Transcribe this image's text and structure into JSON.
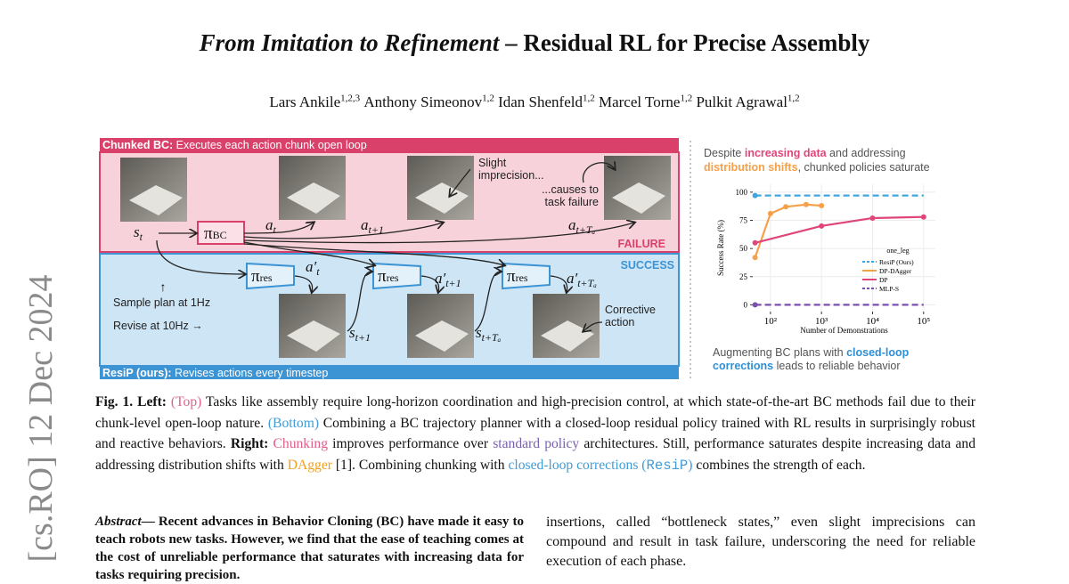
{
  "header": {
    "arxiv": "[cs.RO]  12 Dec 2024",
    "title_italic": "From Imitation to Refinement",
    "title_rest": " – Residual RL for Precise Assembly",
    "authors": [
      {
        "name": "Lars Ankile",
        "aff": "1,2,3"
      },
      {
        "name": "Anthony Simeonov",
        "aff": "1,2"
      },
      {
        "name": "Idan Shenfeld",
        "aff": "1,2"
      },
      {
        "name": "Marcel Torne",
        "aff": "1,2"
      },
      {
        "name": "Pulkit Agrawal",
        "aff": "1,2"
      }
    ]
  },
  "figure": {
    "diagram": {
      "top_header_bold": "Chunked BC:",
      "top_header": " Executes each action chunk open loop",
      "bottom_header_bold": "ResiP (ours):",
      "bottom_header": " Revises actions every timestep",
      "failure": "FAILURE",
      "success": "SUCCESS",
      "note_imprecision": [
        "Slight",
        "imprecision..."
      ],
      "note_failure": [
        "...causes to",
        "task failure"
      ],
      "note_corrective": [
        "Corrective",
        "action"
      ],
      "sample": "Sample plan at 1Hz",
      "revise": "Revise at 10Hz  →",
      "up_arrow": "↑",
      "labels": [
        {
          "base": "s",
          "sub": "t"
        },
        {
          "base": "π",
          "sub": "BC"
        },
        {
          "base": "a",
          "sub": "t"
        },
        {
          "base": "a",
          "sub": "t+1"
        },
        {
          "base": "a",
          "sub": "t+Tₐ"
        },
        {
          "base": "π",
          "sub": "res"
        },
        {
          "base": "π",
          "sub": "res"
        },
        {
          "base": "π",
          "sub": "res"
        },
        {
          "base": "a′",
          "sub": "t"
        },
        {
          "base": "a′",
          "sub": "t+1"
        },
        {
          "base": "a′",
          "sub": "t+Tₐ"
        },
        {
          "base": "s",
          "sub": "t+1"
        },
        {
          "base": "s",
          "sub": "t+Tₐ"
        }
      ]
    },
    "chart": {
      "type": "line",
      "heading": [
        [
          "Despite ",
          "increasing data",
          " and addressing"
        ],
        [
          "distribution shifts",
          ", chunked policies saturate"
        ]
      ],
      "footer": [
        [
          "Augmenting BC plans with ",
          "closed-loop"
        ],
        [
          "corrections",
          " leads to reliable behavior"
        ]
      ],
      "x_label": "Number of Demonstrations",
      "y_label": "Success Rate (%)",
      "log_x": true,
      "grid": true,
      "legend_title": "one_leg",
      "legend": "lower right",
      "xlim": [
        45,
        170000
      ],
      "ylim": [
        -6,
        107
      ],
      "xticks": [
        {
          "value": 100,
          "label": "10²"
        },
        {
          "value": 1000,
          "label": "10³"
        },
        {
          "value": 10000,
          "label": "10⁴"
        },
        {
          "value": 100000,
          "label": "10⁵"
        }
      ],
      "yticks": [
        0,
        25,
        50,
        75,
        100
      ],
      "series": [
        {
          "name": "ResiP (Ours)",
          "color": "#3fa7e0",
          "dashed": true,
          "x": [
            50,
            100000
          ],
          "values": [
            97,
            97
          ]
        },
        {
          "name": "DP-DAgger",
          "color": "#f5a04a",
          "dashed": false,
          "x": [
            50,
            100,
            200,
            500,
            1000
          ],
          "values": [
            42,
            81,
            87,
            89,
            88
          ]
        },
        {
          "name": "DP",
          "color": "#e0457a",
          "dashed": false,
          "x": [
            50,
            1000,
            10000,
            100000
          ],
          "values": [
            55,
            70,
            77,
            78
          ]
        },
        {
          "name": "MLP-S",
          "color": "#7b4fb0",
          "dashed": true,
          "x": [
            50,
            100000
          ],
          "values": [
            0,
            0
          ]
        }
      ]
    }
  },
  "caption": [
    {
      "text": "Fig. 1. Left:",
      "style": "bold"
    },
    {
      "text": " ",
      "style": "plain"
    },
    {
      "text": "(Top)",
      "style": "pink"
    },
    {
      "text": " Tasks like assembly require long-horizon coordination and high-precision control, at which state-of-the-art BC methods fail due to their chunk-level open-loop nature. ",
      "style": "plain"
    },
    {
      "text": "(Bottom)",
      "style": "blue"
    },
    {
      "text": " Combining a BC trajectory planner with a closed-loop residual policy trained with RL results in surprisingly robust and reactive behaviors. ",
      "style": "plain"
    },
    {
      "text": "Right:",
      "style": "bold"
    },
    {
      "text": " ",
      "style": "plain"
    },
    {
      "text": "Chunking",
      "style": "pink"
    },
    {
      "text": " improves performance over ",
      "style": "plain"
    },
    {
      "text": "standard policy",
      "style": "purple"
    },
    {
      "text": " architectures. Still, performance saturates despite increasing data and addressing distribution shifts with ",
      "style": "plain"
    },
    {
      "text": "DAgger",
      "style": "orange"
    },
    {
      "text": " [1]. Combining chunking with ",
      "style": "plain"
    },
    {
      "text": "closed-loop corrections (",
      "style": "blue"
    },
    {
      "text": "ResiP",
      "style": "mono-blue"
    },
    {
      "text": ")",
      "style": "blue"
    },
    {
      "text": " combines the strength of each.",
      "style": "plain"
    }
  ],
  "abstract": {
    "label": "Abstract",
    "left": "— Recent advances in Behavior Cloning (BC) have made it easy to teach robots new tasks. However, we find that the ease of teaching comes at the cost of unreliable performance that saturates with increasing data for tasks requiring precision.",
    "right": "insertions, called “bottleneck states,” even slight imprecisions can compound and result in task failure, underscoring the need for reliable execution of each phase."
  }
}
